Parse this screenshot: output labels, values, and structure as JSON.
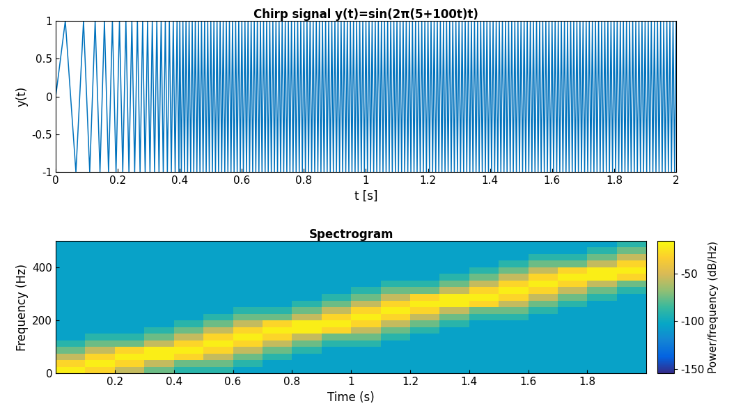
{
  "chart_data": [
    {
      "type": "line",
      "title": "Chirp signal y(t)=sin(2π(5+100t)t)",
      "x_label": "t [s]",
      "y_label": "y(t)",
      "color": "#0072bd",
      "xlim": [
        0,
        2
      ],
      "xticks": [
        0,
        0.2,
        0.4,
        0.6,
        0.8,
        1,
        1.2,
        1.4,
        1.6,
        1.8,
        2
      ],
      "ylim": [
        -1,
        1
      ],
      "yticks": [
        -1,
        -0.5,
        0,
        0.5,
        1
      ],
      "x": [
        0,
        0.0309,
        0.0651,
        0.0896,
        0.1096,
        0.1271,
        0.1427,
        0.157,
        0.1703,
        0.1827,
        0.1944,
        0.2055,
        0.2161,
        0.2262,
        0.236,
        0.2454,
        0.2545,
        0.2633,
        0.2719,
        0.2802,
        0.2883,
        0.2961,
        0.3038,
        0.3113,
        0.3187,
        0.3259,
        0.3329,
        0.3399,
        0.3467,
        0.3533,
        0.3599,
        0.3663,
        0.3727,
        0.3789,
        0.385,
        0.3911,
        0.3971,
        0.4,
        0.405,
        0.41,
        0.415,
        0.42,
        0.425,
        0.43,
        0.435,
        0.44,
        0.445,
        0.45,
        0.455,
        0.46,
        0.465,
        0.47,
        0.475,
        0.48,
        0.485,
        0.49,
        0.495,
        0.5,
        0.505,
        0.51,
        0.515,
        0.52,
        0.525,
        0.53,
        0.535,
        0.54,
        0.545,
        0.55,
        0.555,
        0.56,
        0.565,
        0.57,
        0.575,
        0.58,
        0.585,
        0.59,
        0.595,
        0.6,
        0.605,
        0.61,
        0.615,
        0.62,
        0.625,
        0.63,
        0.635,
        0.64,
        0.645,
        0.65,
        0.655,
        0.66,
        0.665,
        0.67,
        0.675,
        0.68,
        0.685,
        0.69,
        0.695,
        0.7,
        0.705,
        0.71,
        0.715,
        0.72,
        0.725,
        0.73,
        0.735,
        0.74,
        0.745,
        0.75,
        0.755,
        0.76,
        0.765,
        0.77,
        0.775,
        0.78,
        0.785,
        0.79,
        0.795,
        0.8,
        0.805,
        0.81,
        0.815,
        0.82,
        0.825,
        0.83,
        0.835,
        0.84,
        0.845,
        0.85,
        0.855,
        0.86,
        0.865,
        0.87,
        0.875,
        0.88,
        0.885,
        0.89,
        0.895,
        0.9,
        0.905,
        0.91,
        0.915,
        0.92,
        0.925,
        0.93,
        0.935,
        0.94,
        0.945,
        0.95,
        0.955,
        0.96,
        0.965,
        0.97,
        0.975,
        0.98,
        0.985,
        0.99,
        0.995,
        1.0,
        1.005,
        1.01,
        1.015,
        1.02,
        1.025,
        1.03,
        1.035,
        1.04,
        1.045,
        1.05,
        1.055,
        1.06,
        1.065,
        1.07,
        1.075,
        1.08,
        1.085,
        1.09,
        1.095,
        1.1,
        1.105,
        1.11,
        1.115,
        1.12,
        1.125,
        1.13,
        1.135,
        1.14,
        1.145,
        1.15,
        1.155,
        1.16,
        1.165,
        1.17,
        1.175,
        1.18,
        1.185,
        1.19,
        1.195,
        1.2,
        1.205,
        1.21,
        1.215,
        1.22,
        1.225,
        1.23,
        1.235,
        1.24,
        1.245,
        1.25,
        1.255,
        1.26,
        1.265,
        1.27,
        1.275,
        1.28,
        1.285,
        1.29,
        1.295,
        1.3,
        1.305,
        1.31,
        1.315,
        1.32,
        1.325,
        1.33,
        1.335,
        1.34,
        1.345,
        1.35,
        1.355,
        1.36,
        1.365,
        1.37,
        1.375,
        1.38,
        1.385,
        1.39,
        1.395,
        1.4,
        1.405,
        1.41,
        1.415,
        1.42,
        1.425,
        1.43,
        1.435,
        1.44,
        1.445,
        1.45,
        1.455,
        1.46,
        1.465,
        1.47,
        1.475,
        1.48,
        1.485,
        1.49,
        1.495,
        1.5,
        1.505,
        1.51,
        1.515,
        1.52,
        1.525,
        1.53,
        1.535,
        1.54,
        1.545,
        1.55,
        1.555,
        1.56,
        1.565,
        1.57,
        1.575,
        1.58,
        1.585,
        1.59,
        1.595,
        1.6,
        1.605,
        1.61,
        1.615,
        1.62,
        1.625,
        1.63,
        1.635,
        1.64,
        1.645,
        1.65,
        1.655,
        1.66,
        1.665,
        1.67,
        1.675,
        1.68,
        1.685,
        1.69,
        1.695,
        1.7,
        1.705,
        1.71,
        1.715,
        1.72,
        1.725,
        1.73,
        1.735,
        1.74,
        1.745,
        1.75,
        1.755,
        1.76,
        1.765,
        1.77,
        1.775,
        1.78,
        1.785,
        1.79,
        1.795,
        1.8,
        1.805,
        1.81,
        1.815,
        1.82,
        1.825,
        1.83,
        1.835,
        1.84,
        1.845,
        1.85,
        1.855,
        1.86,
        1.865,
        1.87,
        1.875,
        1.88,
        1.885,
        1.89,
        1.895,
        1.9,
        1.905,
        1.91,
        1.915,
        1.92,
        1.925,
        1.93,
        1.935,
        1.94,
        1.945,
        1.95,
        1.955,
        1.96,
        1.965,
        1.97,
        1.975,
        1.98,
        1.985,
        1.99,
        1.995,
        2.0
      ],
      "values": [
        0,
        1,
        -1,
        1,
        -1,
        1,
        -1,
        1,
        -1,
        1,
        -1,
        1,
        -1,
        1,
        -1,
        1,
        -1,
        1,
        -1,
        1,
        -1,
        1,
        -1,
        1,
        -1,
        1,
        -1,
        1,
        -1,
        1,
        -1,
        1,
        -1,
        1,
        -1,
        1,
        -1,
        1,
        -1,
        1,
        -1,
        1,
        -1,
        1,
        -1,
        1,
        -1,
        1,
        -1,
        1,
        -1,
        1,
        -1,
        1,
        -1,
        1,
        -1,
        1,
        -1,
        1,
        -1,
        1,
        -1,
        1,
        -1,
        1,
        -1,
        1,
        -1,
        1,
        -1,
        1,
        -1,
        1,
        -1,
        1,
        -1,
        1,
        -1,
        1,
        -1,
        1,
        -1,
        1,
        -1,
        1,
        -1,
        1,
        -1,
        1,
        -1,
        1,
        -1,
        1,
        -1,
        1,
        -1,
        1,
        -1,
        1,
        -1,
        1,
        -1,
        1,
        -1,
        1,
        -1,
        1,
        -1,
        1,
        -1,
        1,
        -1,
        1,
        -1,
        1,
        -1,
        1,
        -1,
        1,
        -1,
        1,
        -1,
        1,
        -1,
        1,
        -1,
        1,
        -1,
        1,
        -1,
        1,
        -1,
        1,
        -1,
        1,
        -1,
        1,
        -1,
        1,
        -1,
        1,
        -1,
        1,
        -1,
        1,
        -1,
        1,
        -1,
        1,
        -1,
        1,
        -1,
        1,
        -1,
        1,
        -1,
        1,
        -1,
        1,
        -1,
        1,
        -1,
        1,
        -1,
        1,
        -1,
        1,
        -1,
        1,
        -1,
        1,
        -1,
        1,
        -1,
        1,
        -1,
        1,
        -1,
        1,
        -1,
        1,
        -1,
        1,
        -1,
        1,
        -1,
        1,
        -1,
        1,
        -1,
        1,
        -1,
        1,
        -1,
        1,
        -1,
        1,
        -1,
        1,
        -1,
        1,
        -1,
        1,
        -1,
        1,
        -1,
        1,
        -1,
        1,
        -1,
        1,
        -1,
        1,
        -1,
        1,
        -1,
        1,
        -1,
        1,
        -1,
        1,
        -1,
        1,
        -1,
        1,
        -1,
        1,
        -1,
        1,
        -1,
        1,
        -1,
        1,
        -1,
        1,
        -1,
        1,
        -1,
        1,
        -1,
        1,
        -1,
        1,
        -1,
        1,
        -1,
        1,
        -1,
        1,
        -1,
        1,
        -1,
        1,
        -1,
        1,
        -1,
        1,
        -1,
        1,
        -1,
        1,
        -1,
        1,
        -1,
        1,
        -1,
        1,
        -1,
        1,
        -1,
        1,
        -1,
        1,
        -1,
        1,
        -1,
        1,
        -1,
        1,
        -1,
        1,
        -1,
        1,
        -1,
        1,
        -1,
        1,
        -1,
        1,
        -1,
        1,
        -1,
        1,
        -1,
        1,
        -1,
        1,
        -1,
        1,
        -1,
        1,
        -1,
        1,
        -1,
        1,
        -1,
        1,
        -1,
        1,
        -1,
        1,
        -1,
        1,
        -1,
        1,
        -1,
        1,
        -1,
        1,
        -1,
        1,
        -1,
        1,
        -1,
        1,
        -1,
        1,
        -1,
        1,
        -1,
        1,
        -1,
        1,
        -1,
        1,
        -1,
        1,
        -1,
        1,
        -1,
        1,
        -1,
        1,
        -1,
        1,
        -1,
        1,
        -1,
        1,
        -1,
        1,
        -1,
        1,
        -1,
        1,
        -1,
        1
      ]
    },
    {
      "type": "heatmap",
      "title": "Spectrogram",
      "x_label": "Time (s)",
      "y_label": "Frequency (Hz)",
      "xlim": [
        0,
        2
      ],
      "xticks": [
        0.2,
        0.4,
        0.6,
        0.8,
        1,
        1.2,
        1.4,
        1.6,
        1.8
      ],
      "ylim": [
        0,
        500
      ],
      "yticks": [
        0,
        200,
        400
      ],
      "time_edges": [
        0,
        0.1,
        0.2,
        0.3,
        0.4,
        0.5,
        0.6,
        0.7,
        0.8,
        0.9,
        1,
        1.1,
        1.2,
        1.3,
        1.4,
        1.5,
        1.6,
        1.7,
        1.8,
        1.9,
        2
      ],
      "frequency_edges": [
        0,
        25,
        50,
        75,
        100,
        125,
        150,
        175,
        200,
        225,
        250,
        275,
        300,
        325,
        350,
        375,
        400,
        425,
        450,
        475,
        500
      ],
      "cells_by_time": [
        [
          -20,
          -30,
          -55,
          -75,
          -90,
          -105,
          -105,
          -105,
          -105,
          -105,
          -105,
          -105,
          -105,
          -105,
          -105,
          -105,
          -105,
          -105,
          -105,
          -105
        ],
        [
          -30,
          -20,
          -30,
          -55,
          -75,
          -90,
          -105,
          -105,
          -105,
          -105,
          -105,
          -105,
          -105,
          -105,
          -105,
          -105,
          -105,
          -105,
          -105,
          -105
        ],
        [
          -55,
          -30,
          -20,
          -30,
          -75,
          -90,
          -105,
          -105,
          -105,
          -105,
          -105,
          -105,
          -105,
          -105,
          -105,
          -105,
          -105,
          -105,
          -105,
          -105
        ],
        [
          -75,
          -55,
          -20,
          -20,
          -55,
          -75,
          -90,
          -105,
          -105,
          -105,
          -105,
          -105,
          -105,
          -105,
          -105,
          -105,
          -105,
          -105,
          -105,
          -105
        ],
        [
          -90,
          -75,
          -30,
          -20,
          -30,
          -55,
          -75,
          -90,
          -105,
          -105,
          -105,
          -105,
          -105,
          -105,
          -105,
          -105,
          -105,
          -105,
          -105,
          -105
        ],
        [
          -90,
          -75,
          -55,
          -30,
          -20,
          -30,
          -55,
          -75,
          -90,
          -105,
          -105,
          -105,
          -105,
          -105,
          -105,
          -105,
          -105,
          -105,
          -105,
          -105
        ],
        [
          -105,
          -90,
          -75,
          -55,
          -30,
          -20,
          -30,
          -55,
          -75,
          -90,
          -105,
          -105,
          -105,
          -105,
          -105,
          -105,
          -105,
          -105,
          -105,
          -105
        ],
        [
          -105,
          -105,
          -90,
          -75,
          -55,
          -30,
          -20,
          -30,
          -75,
          -90,
          -105,
          -105,
          -105,
          -105,
          -105,
          -105,
          -105,
          -105,
          -105,
          -105
        ],
        [
          -105,
          -105,
          -105,
          -90,
          -75,
          -55,
          -20,
          -20,
          -55,
          -75,
          -90,
          -105,
          -105,
          -105,
          -105,
          -105,
          -105,
          -105,
          -105,
          -105
        ],
        [
          -105,
          -105,
          -105,
          -105,
          -90,
          -75,
          -30,
          -20,
          -30,
          -55,
          -75,
          -90,
          -105,
          -105,
          -105,
          -105,
          -105,
          -105,
          -105,
          -105
        ],
        [
          -105,
          -105,
          -105,
          -105,
          -90,
          -75,
          -55,
          -30,
          -20,
          -30,
          -55,
          -75,
          -90,
          -105,
          -105,
          -105,
          -105,
          -105,
          -105,
          -105
        ],
        [
          -105,
          -105,
          -105,
          -105,
          -105,
          -90,
          -75,
          -55,
          -30,
          -20,
          -30,
          -55,
          -75,
          -90,
          -105,
          -105,
          -105,
          -105,
          -105,
          -105
        ],
        [
          -105,
          -105,
          -105,
          -105,
          -105,
          -105,
          -90,
          -75,
          -55,
          -30,
          -20,
          -30,
          -75,
          -90,
          -105,
          -105,
          -105,
          -105,
          -105,
          -105
        ],
        [
          -105,
          -105,
          -105,
          -105,
          -105,
          -105,
          -105,
          -90,
          -75,
          -55,
          -20,
          -20,
          -55,
          -75,
          -90,
          -105,
          -105,
          -105,
          -105,
          -105
        ],
        [
          -105,
          -105,
          -105,
          -105,
          -105,
          -105,
          -105,
          -105,
          -90,
          -75,
          -30,
          -20,
          -30,
          -55,
          -75,
          -90,
          -105,
          -105,
          -105,
          -105
        ],
        [
          -105,
          -105,
          -105,
          -105,
          -105,
          -105,
          -105,
          -105,
          -90,
          -75,
          -55,
          -30,
          -20,
          -30,
          -55,
          -75,
          -90,
          -105,
          -105,
          -105
        ],
        [
          -105,
          -105,
          -105,
          -105,
          -105,
          -105,
          -105,
          -105,
          -105,
          -90,
          -75,
          -55,
          -30,
          -20,
          -30,
          -55,
          -75,
          -90,
          -105,
          -105
        ],
        [
          -105,
          -105,
          -105,
          -105,
          -105,
          -105,
          -105,
          -105,
          -105,
          -105,
          -90,
          -75,
          -55,
          -30,
          -20,
          -30,
          -75,
          -90,
          -105,
          -105
        ],
        [
          -105,
          -105,
          -105,
          -105,
          -105,
          -105,
          -105,
          -105,
          -105,
          -105,
          -105,
          -90,
          -75,
          -55,
          -20,
          -20,
          -55,
          -75,
          -90,
          -105
        ],
        [
          -105,
          -105,
          -105,
          -105,
          -105,
          -105,
          -105,
          -105,
          -105,
          -105,
          -105,
          -105,
          -90,
          -75,
          -30,
          -20,
          -30,
          -55,
          -75,
          -90
        ]
      ],
      "colorbar_label": "Power/frequency (dB/Hz)",
      "colorbar_range": [
        -155,
        -15
      ],
      "colorbar_ticks": [
        -150,
        -100,
        -50
      ]
    }
  ]
}
